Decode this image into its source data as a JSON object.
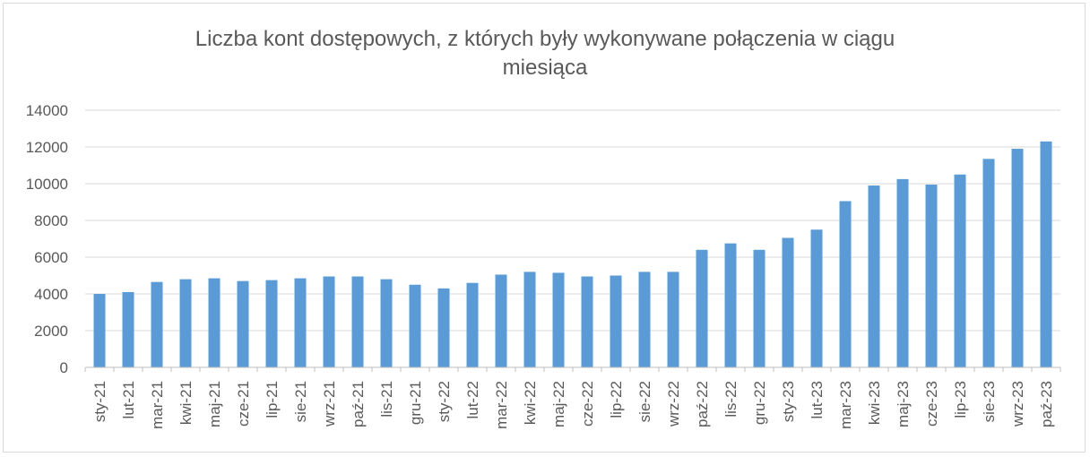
{
  "chart_data": {
    "type": "bar",
    "title_lines": [
      "Liczba kont dostępowych, z których były wykonywane połączenia w ciągu",
      "miesiąca"
    ],
    "xlabel": "",
    "ylabel": "",
    "ylim": [
      0,
      14000
    ],
    "yticks": [
      "0",
      "2000",
      "4000",
      "6000",
      "8000",
      "10000",
      "12000",
      "14000"
    ],
    "grid": true,
    "legend": "none",
    "bar_color": "#5b9bd5",
    "categories": [
      "sty-21",
      "lut-21",
      "mar-21",
      "kwi-21",
      "maj-21",
      "cze-21",
      "lip-21",
      "sie-21",
      "wrz-21",
      "paź-21",
      "lis-21",
      "gru-21",
      "sty-22",
      "lut-22",
      "mar-22",
      "kwi-22",
      "maj-22",
      "cze-22",
      "lip-22",
      "sie-22",
      "wrz-22",
      "paź-22",
      "lis-22",
      "gru-22",
      "sty-23",
      "lut-23",
      "mar-23",
      "kwi-23",
      "maj-23",
      "cze-23",
      "lip-23",
      "sie-23",
      "wrz-23",
      "paź-23"
    ],
    "values": [
      4000,
      4100,
      4650,
      4800,
      4850,
      4700,
      4750,
      4850,
      4950,
      4950,
      4800,
      4500,
      4300,
      4600,
      5050,
      5200,
      5150,
      4950,
      5000,
      5200,
      5200,
      6400,
      6750,
      6400,
      7050,
      7500,
      9050,
      9900,
      10250,
      9950,
      10500,
      11350,
      11900,
      12300
    ]
  }
}
